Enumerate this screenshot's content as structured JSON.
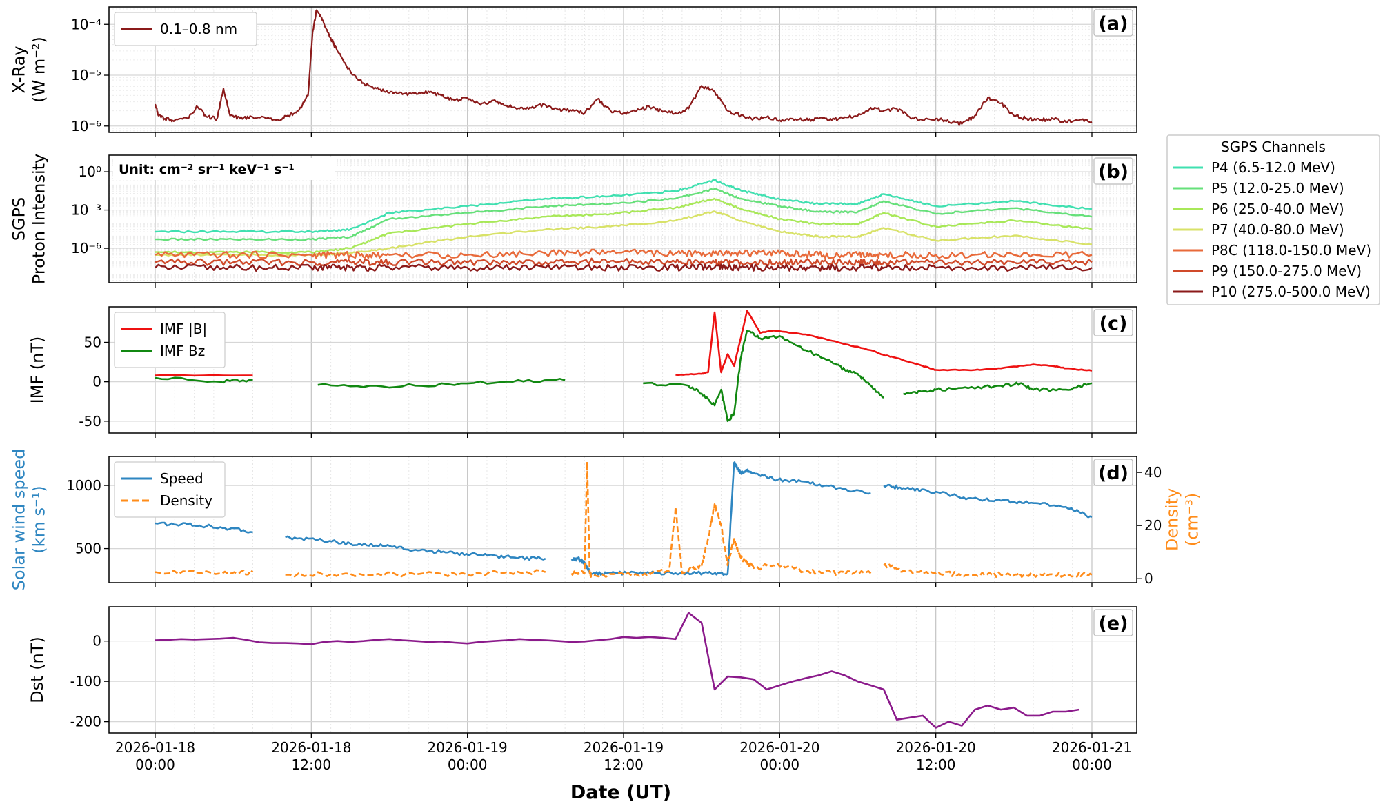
{
  "xlabel": "Date (UT)",
  "xtick_labels": [
    [
      "2026-01-18",
      "00:00"
    ],
    [
      "2026-01-18",
      "12:00"
    ],
    [
      "2026-01-19",
      "00:00"
    ],
    [
      "2026-01-19",
      "12:00"
    ],
    [
      "2026-01-20",
      "00:00"
    ],
    [
      "2026-01-20",
      "12:00"
    ],
    [
      "2026-01-21",
      "00:00"
    ]
  ],
  "unit_label": "Unit: cm⁻² sr⁻¹ keV⁻¹ s⁻¹",
  "legend_title_b": "SGPS Channels",
  "colors": {
    "xray": "#8b1a1a",
    "P4": "#40e0b0",
    "P5": "#66e07a",
    "P6": "#a8e858",
    "P7": "#d8e268",
    "P8C": "#e86a3a",
    "P9": "#d04a2a",
    "P10": "#8b1a1a",
    "imf_b": "#ee1111",
    "imf_bz": "#118811",
    "speed": "#2e86c1",
    "density": "#ff8c1a",
    "dst": "#8b1a8b"
  },
  "chart_data": [
    {
      "panel": "(a)",
      "type": "line",
      "ylabel_lines": [
        "X-Ray",
        "(W m⁻²)"
      ],
      "yscale": "log",
      "ylim": [
        7.5e-07,
        0.00022
      ],
      "yticks": [
        1e-06,
        1e-05,
        0.0001
      ],
      "ytick_labels": [
        "10⁻⁶",
        "10⁻⁵",
        "10⁻⁴"
      ],
      "series": [
        {
          "name": "0.1–0.8 nm",
          "x": [
            0,
            0.5,
            1.5,
            3,
            5,
            6.5,
            8,
            9.5,
            10.5,
            11.5,
            13,
            15,
            17,
            19,
            20.5,
            22,
            23.5,
            24.2,
            24.8,
            25.5,
            26.5,
            28,
            30,
            32,
            34,
            36,
            38,
            40,
            42,
            44,
            46,
            48,
            50,
            52,
            54,
            56,
            58,
            60,
            62,
            64,
            66,
            68,
            70,
            72,
            74,
            76,
            78,
            80,
            82,
            84,
            86,
            88,
            90,
            92,
            94,
            96,
            98,
            100,
            102,
            104,
            106,
            108,
            110,
            112,
            114,
            116,
            118,
            120,
            122,
            124,
            126,
            128,
            130,
            132,
            134,
            136,
            138,
            140,
            142,
            144
          ],
          "y": [
            2.7e-06,
            1.6e-06,
            1.4e-06,
            1.3e-06,
            1.4e-06,
            2.4e-06,
            1.5e-06,
            1.4e-06,
            5.5e-06,
            1.6e-06,
            1.4e-06,
            1.5e-06,
            1.4e-06,
            1.3e-06,
            1.6e-06,
            2e-06,
            4e-06,
            7e-05,
            0.00019,
            0.00014,
            7e-05,
            3e-05,
            1.2e-05,
            7e-06,
            5.5e-06,
            4.5e-06,
            4.2e-06,
            4.5e-06,
            4.8e-06,
            4e-06,
            3.2e-06,
            3.6e-06,
            2.6e-06,
            3.2e-06,
            2.5e-06,
            2.2e-06,
            2.4e-06,
            2.6e-06,
            2.1e-06,
            2e-06,
            1.8e-06,
            3.4e-06,
            2e-06,
            1.8e-06,
            2e-06,
            2.4e-06,
            1.9e-06,
            1.8e-06,
            2.2e-06,
            6.2e-06,
            4.8e-06,
            2e-06,
            1.6e-06,
            1.4e-06,
            1.5e-06,
            1.3e-06,
            1.4e-06,
            1.3e-06,
            1.4e-06,
            1.3e-06,
            1.5e-06,
            1.6e-06,
            2.3e-06,
            2e-06,
            2.2e-06,
            1.5e-06,
            1.3e-06,
            1.4e-06,
            1.2e-06,
            1.1e-06,
            1.6e-06,
            3.6e-06,
            2.8e-06,
            1.6e-06,
            1.4e-06,
            1.3e-06,
            1.4e-06,
            1.2e-06,
            1.3e-06,
            1.2e-06
          ]
        }
      ],
      "legend_loc": "upper left"
    },
    {
      "panel": "(b)",
      "type": "line",
      "ylabel_lines": [
        "SGPS",
        "Proton Intensity"
      ],
      "yscale": "log",
      "ylim": [
        2e-09,
        20
      ],
      "yticks": [
        1e-06,
        0.001,
        1
      ],
      "ytick_labels": [
        "10⁻⁶",
        "10⁻³",
        "10⁰"
      ],
      "x": [
        0,
        12,
        24,
        30,
        36,
        48,
        60,
        70,
        80,
        86,
        90,
        96,
        102,
        108,
        112,
        120,
        132,
        144
      ],
      "series": [
        {
          "name": "P4 (6.5-12.0 MeV)",
          "y": [
            2e-05,
            2e-05,
            2e-05,
            3e-05,
            0.0006,
            0.002,
            0.008,
            0.012,
            0.03,
            0.22,
            0.035,
            0.007,
            0.003,
            0.003,
            0.018,
            0.002,
            0.005,
            0.0012
          ]
        },
        {
          "name": "P5 (12.0-25.0 MeV)",
          "y": [
            5e-06,
            5e-06,
            5e-06,
            8e-06,
            0.0002,
            0.0006,
            0.002,
            0.003,
            0.008,
            0.045,
            0.008,
            0.002,
            0.0007,
            0.0007,
            0.005,
            0.0005,
            0.0014,
            0.0003
          ]
        },
        {
          "name": "P6 (25.0-40.0 MeV)",
          "y": [
            5e-07,
            5e-07,
            5e-07,
            1e-06,
            1.5e-05,
            8e-05,
            0.0003,
            0.0005,
            0.0015,
            0.008,
            0.0012,
            0.0002,
            8e-05,
            8e-05,
            0.0006,
            5e-05,
            0.00015,
            3e-05
          ]
        },
        {
          "name": "P7 (40.0-80.0 MeV)",
          "y": [
            3e-07,
            3e-07,
            3e-07,
            4e-07,
            1e-06,
            8e-06,
            3e-05,
            5e-05,
            0.00015,
            0.0008,
            0.00015,
            2e-05,
            8e-06,
            8e-06,
            4e-05,
            4e-06,
            1e-05,
            2e-06
          ]
        },
        {
          "name": "P8C (118.0-150.0 MeV)",
          "y": [
            3e-07,
            3e-07,
            3e-07,
            3e-07,
            3e-07,
            3e-07,
            4e-07,
            5e-07,
            4e-07,
            4e-07,
            4e-07,
            4e-07,
            3e-07,
            3e-07,
            3e-07,
            3e-07,
            3e-07,
            3e-07
          ]
        },
        {
          "name": "P9 (150.0-275.0 MeV)",
          "y": [
            8e-08,
            8e-08,
            8e-08,
            8e-08,
            8e-08,
            8e-08,
            8e-08,
            1e-07,
            8e-08,
            8e-08,
            8e-08,
            8e-08,
            8e-08,
            8e-08,
            8e-08,
            8e-08,
            8e-08,
            8e-08
          ]
        },
        {
          "name": "P10 (275.0-500.0 MeV)",
          "y": [
            3e-08,
            3e-08,
            3e-08,
            3e-08,
            3e-08,
            3e-08,
            3e-08,
            3e-08,
            3e-08,
            3e-08,
            3e-08,
            3e-08,
            3e-08,
            3e-08,
            3e-08,
            3e-08,
            3e-08,
            3e-08
          ]
        }
      ],
      "legend_loc": "outside right"
    },
    {
      "panel": "(c)",
      "type": "line",
      "ylabel_lines": [
        "IMF (nT)"
      ],
      "ylim": [
        -65,
        95
      ],
      "yticks": [
        -50,
        0,
        50
      ],
      "series": [
        {
          "name": "IMF |B|",
          "x": [
            0,
            15,
            15.3,
            63,
            64,
            80,
            84,
            85,
            86,
            87,
            88,
            89,
            90,
            91,
            93,
            95,
            100,
            105,
            110,
            112,
            114,
            118,
            120,
            126,
            130,
            135,
            138,
            140,
            144
          ],
          "y": [
            8,
            8,
            null,
            9,
            null,
            9,
            10,
            12,
            88,
            12,
            35,
            20,
            55,
            90,
            62,
            65,
            60,
            50,
            40,
            34,
            30,
            20,
            15,
            15,
            17,
            22,
            20,
            17,
            14
          ]
        },
        {
          "name": "IMF Bz",
          "x": [
            0,
            10,
            15,
            15.3,
            25,
            35,
            45,
            55,
            63,
            64,
            75,
            82,
            84,
            86,
            87,
            88,
            89,
            90,
            91,
            93,
            96,
            100,
            104,
            106,
            108,
            110,
            112,
            113,
            115,
            118,
            120,
            125,
            130,
            133,
            135,
            140,
            144
          ],
          "y": [
            5,
            0,
            2,
            null,
            -4,
            -6,
            -3,
            0,
            2,
            null,
            -2,
            -5,
            -15,
            -30,
            -10,
            -50,
            -40,
            30,
            65,
            55,
            58,
            40,
            25,
            15,
            10,
            -5,
            -20,
            null,
            -15,
            -12,
            -10,
            -8,
            -5,
            -2,
            -10,
            -10,
            -2
          ]
        }
      ],
      "legend_loc": "upper left"
    },
    {
      "panel": "(d)",
      "type": "line",
      "ylabel_lines": [
        "Solar wind speed",
        "(km s⁻¹)"
      ],
      "ylim": [
        230,
        1230
      ],
      "yticks": [
        500,
        1000
      ],
      "y2label_lines": [
        "Density",
        "(cm⁻³)"
      ],
      "y2lim": [
        -1.5,
        46
      ],
      "y2ticks": [
        0,
        20,
        40
      ],
      "series": [
        {
          "name": "Speed",
          "axis": "left",
          "x": [
            0,
            5,
            10,
            15,
            15.3,
            20,
            25,
            30,
            35,
            40,
            45,
            50,
            55,
            60,
            63,
            64,
            65,
            66,
            67,
            70,
            75,
            80,
            85,
            88,
            89,
            90,
            91,
            92,
            95,
            100,
            105,
            110,
            111,
            112,
            115,
            120,
            125,
            130,
            135,
            140,
            144
          ],
          "y": [
            700,
            690,
            670,
            630,
            null,
            590,
            570,
            540,
            520,
            490,
            470,
            450,
            430,
            420,
            null,
            410,
            420,
            390,
            300,
            305,
            305,
            305,
            308,
            300,
            1180,
            1100,
            1120,
            1100,
            1050,
            1030,
            980,
            940,
            null,
            1000,
            980,
            950,
            900,
            880,
            860,
            830,
            750
          ]
        },
        {
          "name": "Density",
          "axis": "right",
          "x": [
            0,
            10,
            15,
            15.3,
            20,
            30,
            40,
            50,
            60,
            63,
            64,
            66,
            66.4,
            66.8,
            67,
            75,
            79,
            80,
            81,
            84,
            85,
            86,
            87,
            88,
            89,
            90,
            91,
            92,
            95,
            100,
            105,
            110,
            111,
            112,
            115,
            120,
            125,
            130,
            135,
            140,
            144
          ],
          "y": [
            2.5,
            2,
            2.5,
            null,
            1.5,
            1.8,
            1.6,
            2,
            2.5,
            null,
            2,
            2,
            44,
            2,
            1.5,
            1.5,
            3,
            27,
            2,
            5,
            15,
            28,
            20,
            5,
            15,
            8,
            6,
            4,
            5,
            3,
            2,
            2,
            null,
            5,
            3,
            2,
            1.5,
            1.5,
            1.5,
            1.5,
            1.5
          ]
        }
      ],
      "legend_loc": "upper left"
    },
    {
      "panel": "(e)",
      "type": "line",
      "ylabel_lines": [
        "Dst (nT)"
      ],
      "ylim": [
        -228,
        85
      ],
      "yticks": [
        -200,
        -100,
        0
      ],
      "series": [
        {
          "name": "Dst",
          "x": [
            0,
            2,
            4,
            6,
            8,
            10,
            12,
            14,
            16,
            18,
            20,
            22,
            24,
            26,
            28,
            30,
            32,
            34,
            36,
            38,
            40,
            42,
            44,
            46,
            48,
            50,
            52,
            54,
            56,
            58,
            60,
            62,
            64,
            66,
            68,
            70,
            72,
            74,
            76,
            78,
            80,
            82,
            84,
            86,
            88,
            90,
            92,
            94,
            96,
            98,
            100,
            102,
            104,
            106,
            108,
            110,
            112,
            114,
            116,
            118,
            120,
            122,
            124,
            126,
            128,
            130,
            132,
            134,
            136,
            138,
            140,
            142
          ],
          "y": [
            2,
            3,
            5,
            4,
            5,
            6,
            8,
            3,
            -3,
            -5,
            -5,
            -6,
            -8,
            -2,
            0,
            -2,
            0,
            3,
            5,
            2,
            0,
            -2,
            -1,
            -4,
            -6,
            -2,
            0,
            2,
            5,
            3,
            2,
            0,
            -2,
            -1,
            2,
            5,
            10,
            8,
            10,
            8,
            5,
            70,
            45,
            -120,
            -88,
            -90,
            -95,
            -120,
            -110,
            -100,
            -92,
            -85,
            -75,
            -85,
            -100,
            -110,
            -120,
            -195,
            -190,
            -185,
            -215,
            -200,
            -210,
            -170,
            -160,
            -170,
            -165,
            -185,
            -185,
            -175,
            -175,
            -170
          ]
        }
      ]
    }
  ]
}
